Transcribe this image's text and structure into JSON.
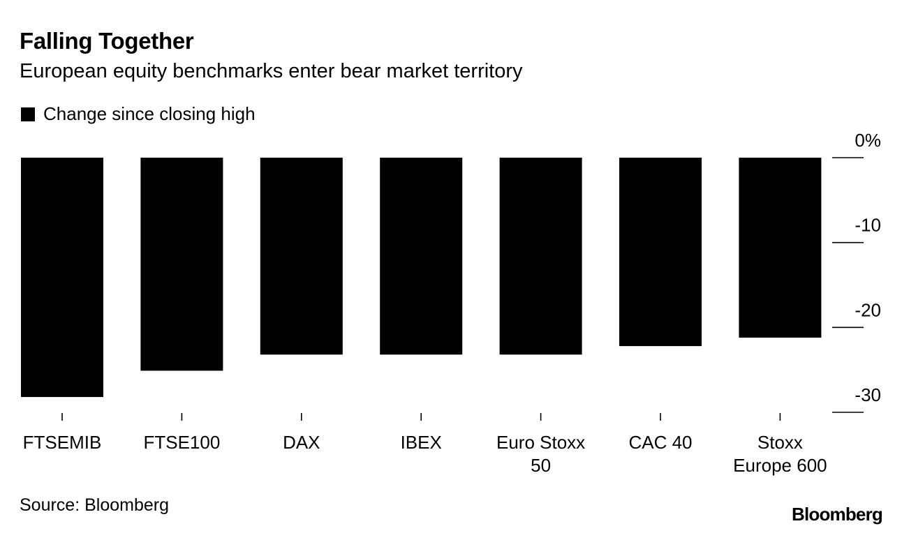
{
  "header": {
    "title": "Falling Together",
    "subtitle": "European equity benchmarks enter bear market territory"
  },
  "legend": {
    "label": "Change since closing high",
    "color": "#000000"
  },
  "chart_data": {
    "type": "bar",
    "categories": [
      [
        "FTSEMIB"
      ],
      [
        "FTSE100"
      ],
      [
        "DAX"
      ],
      [
        "IBEX"
      ],
      [
        "Euro Stoxx",
        "50"
      ],
      [
        "CAC 40"
      ],
      [
        "Stoxx",
        "Europe 600"
      ]
    ],
    "series": [
      {
        "name": "Change since closing high",
        "values": [
          -28.2,
          -25.1,
          -23.2,
          -23.2,
          -23.2,
          -22.2,
          -21.2
        ]
      }
    ],
    "ylim": [
      -30,
      0
    ],
    "yticks": [
      0,
      -10,
      -20,
      -30
    ],
    "ytick_labels": [
      "0%",
      "-10",
      "-20",
      "-30"
    ],
    "xlabel": "",
    "ylabel": "",
    "bar_color": "#000000"
  },
  "footer": {
    "source": "Source: Bloomberg",
    "brand": "Bloomberg"
  }
}
